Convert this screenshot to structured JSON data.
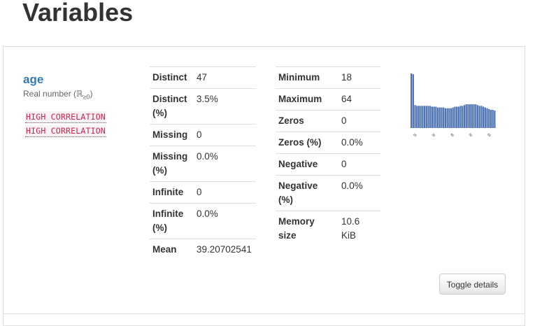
{
  "page": {
    "title": "Variables"
  },
  "variable": {
    "name": "age",
    "type_label": "Real number (",
    "type_symbol": "ℝ",
    "type_sub": "≥0",
    "type_close": ")",
    "badges": [
      "HIGH CORRELATION",
      "HIGH CORRELATION"
    ]
  },
  "stats_left": [
    {
      "key": "Distinct",
      "value": "47"
    },
    {
      "key": "Distinct (%)",
      "value": "3.5%"
    },
    {
      "key": "Missing",
      "value": "0"
    },
    {
      "key": "Missing (%)",
      "value": "0.0%"
    },
    {
      "key": "Infinite",
      "value": "0"
    },
    {
      "key": "Infinite (%)",
      "value": "0.0%"
    },
    {
      "key": "Mean",
      "value": "39.20702541"
    }
  ],
  "stats_right": [
    {
      "key": "Minimum",
      "value": "18"
    },
    {
      "key": "Maximum",
      "value": "64"
    },
    {
      "key": "Zeros",
      "value": "0"
    },
    {
      "key": "Zeros (%)",
      "value": "0.0%"
    },
    {
      "key": "Negative",
      "value": "0"
    },
    {
      "key": "Negative (%)",
      "value": "0.0%"
    },
    {
      "key": "Memory size",
      "value": "10.6 KiB"
    }
  ],
  "histogram": {
    "color": "#4c72b0",
    "tick_labels": [
      "20",
      "30",
      "40",
      "50",
      "60"
    ],
    "values": [
      69,
      68,
      29,
      28,
      28,
      28,
      28,
      28,
      28,
      28,
      28,
      27,
      27,
      27,
      26,
      26,
      26,
      26,
      25,
      25,
      25,
      25,
      26,
      27,
      27,
      27,
      28,
      28,
      29,
      30,
      30,
      30,
      30,
      30,
      30,
      29,
      28,
      28,
      27,
      26,
      25,
      24,
      23,
      23,
      22
    ]
  },
  "actions": {
    "toggle_label": "Toggle details"
  }
}
